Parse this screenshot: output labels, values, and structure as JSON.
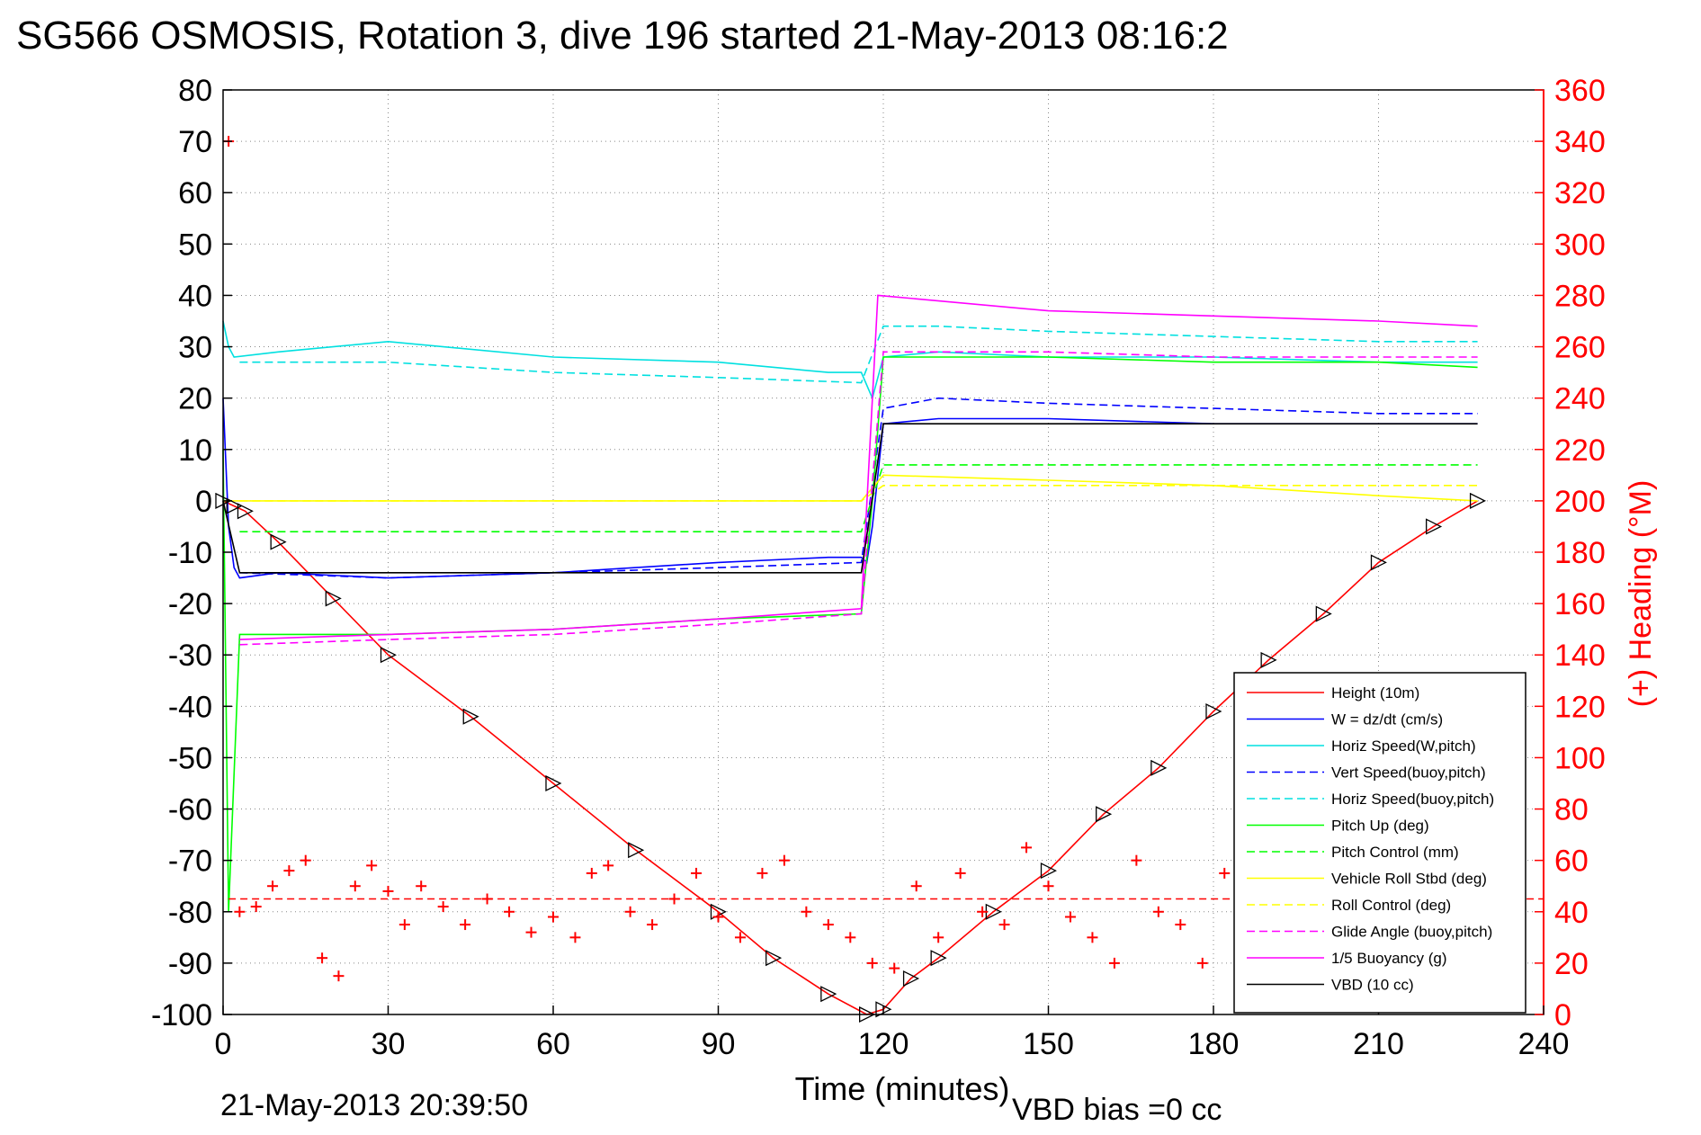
{
  "chart_data": {
    "type": "line",
    "title": "SG566 OSMOSIS, Rotation 3, dive 196 started 21-May-2013 08:16:2",
    "xlabel": "Time (minutes)",
    "ylabel_right": "(+) Heading (°M)",
    "footer_date": "21-May-2013 20:39:50",
    "footer_note": "VBD bias =0 cc",
    "xlim": [
      0,
      240
    ],
    "ylim": [
      -100,
      80
    ],
    "y2lim": [
      0,
      360
    ],
    "xticks": [
      0,
      30,
      60,
      90,
      120,
      150,
      180,
      210,
      240
    ],
    "yticks": [
      80,
      70,
      60,
      50,
      40,
      30,
      20,
      10,
      0,
      -10,
      -20,
      -30,
      -40,
      -50,
      -60,
      -70,
      -80,
      -90,
      -100
    ],
    "y2ticks": [
      360,
      340,
      320,
      300,
      280,
      260,
      240,
      220,
      200,
      180,
      160,
      140,
      120,
      100,
      80,
      60,
      40,
      20,
      0
    ],
    "grid": true,
    "legend_position": "bottom-right",
    "colors": {
      "right_axis": "#ff0000"
    },
    "series": [
      {
        "name": "Height (10m)",
        "color": "#ff0000",
        "style": "solid",
        "x": [
          0,
          2,
          4,
          10,
          20,
          30,
          45,
          60,
          75,
          90,
          100,
          110,
          117,
          120,
          125,
          130,
          140,
          150,
          160,
          170,
          180,
          190,
          200,
          210,
          220,
          228
        ],
        "y": [
          0,
          -1,
          -2,
          -8,
          -19,
          -30,
          -42,
          -55,
          -68,
          -80,
          -89,
          -96,
          -100,
          -99,
          -93,
          -89,
          -80,
          -72,
          -61,
          -52,
          -41,
          -31,
          -22,
          -12,
          -5,
          0
        ]
      },
      {
        "name": "W = dz/dt (cm/s)",
        "color": "#0000ff",
        "style": "solid",
        "x": [
          0,
          1,
          2,
          3,
          10,
          30,
          60,
          90,
          110,
          116,
          117,
          118,
          120,
          130,
          150,
          180,
          210,
          228
        ],
        "y": [
          20,
          -5,
          -13,
          -15,
          -14,
          -15,
          -14,
          -12,
          -11,
          -11,
          -12,
          -5,
          15,
          16,
          16,
          15,
          15,
          15
        ]
      },
      {
        "name": "Horiz Speed(W,pitch)",
        "color": "#00e0e0",
        "style": "solid",
        "x": [
          0,
          1,
          2,
          10,
          30,
          60,
          90,
          110,
          116,
          118,
          120,
          130,
          150,
          180,
          210,
          228
        ],
        "y": [
          35,
          30,
          28,
          29,
          31,
          28,
          27,
          25,
          25,
          20,
          28,
          29,
          28,
          28,
          27,
          27
        ]
      },
      {
        "name": "Vert Speed(buoy,pitch)",
        "color": "#0000ff",
        "style": "dashed",
        "x": [
          3,
          30,
          60,
          90,
          116,
          120,
          130,
          150,
          180,
          210,
          228
        ],
        "y": [
          -14,
          -15,
          -14,
          -13,
          -12,
          18,
          20,
          19,
          18,
          17,
          17
        ]
      },
      {
        "name": "Horiz Speed(buoy,pitch)",
        "color": "#00e0e0",
        "style": "dashed",
        "x": [
          3,
          30,
          60,
          90,
          116,
          120,
          130,
          150,
          180,
          210,
          228
        ],
        "y": [
          27,
          27,
          25,
          24,
          23,
          34,
          34,
          33,
          32,
          31,
          31
        ]
      },
      {
        "name": "Pitch Up (deg)",
        "color": "#00ff00",
        "style": "solid",
        "x": [
          0,
          1,
          3,
          30,
          60,
          90,
          116,
          118,
          120,
          130,
          150,
          180,
          210,
          228
        ],
        "y": [
          10,
          -80,
          -26,
          -26,
          -25,
          -23,
          -22,
          0,
          28,
          28,
          28,
          27,
          27,
          26
        ]
      },
      {
        "name": "Pitch Control (mm)",
        "color": "#00ff00",
        "style": "dashed",
        "x": [
          3,
          116,
          120,
          228
        ],
        "y": [
          -6,
          -6,
          7,
          7
        ]
      },
      {
        "name": "Vehicle Roll Stbd (deg)",
        "color": "#ffff00",
        "style": "solid",
        "x": [
          0,
          3,
          116,
          120,
          150,
          180,
          210,
          228
        ],
        "y": [
          0,
          0,
          0,
          5,
          4,
          3,
          1,
          0
        ]
      },
      {
        "name": "Roll Control (deg)",
        "color": "#ffff00",
        "style": "dashed",
        "x": [
          3,
          116,
          120,
          228
        ],
        "y": [
          0,
          0,
          3,
          3
        ]
      },
      {
        "name": "Glide Angle (buoy,pitch)",
        "color": "#ff00ff",
        "style": "dashed",
        "x": [
          3,
          30,
          60,
          90,
          116,
          120,
          150,
          180,
          210,
          228
        ],
        "y": [
          -28,
          -27,
          -26,
          -24,
          -22,
          29,
          29,
          28,
          28,
          28
        ]
      },
      {
        "name": "1/5 Buoyancy (g)",
        "color": "#ff00ff",
        "style": "solid",
        "x": [
          3,
          30,
          60,
          90,
          116,
          119,
          150,
          180,
          210,
          228
        ],
        "y": [
          -27,
          -26,
          -25,
          -23,
          -21,
          40,
          37,
          36,
          35,
          34
        ]
      },
      {
        "name": "VBD (10 cc)",
        "color": "#000000",
        "style": "solid",
        "x": [
          0,
          3,
          116,
          120,
          228
        ],
        "y": [
          0,
          -14,
          -14,
          15,
          15
        ]
      }
    ],
    "heading_points": {
      "color": "#ff0000",
      "axis": "right",
      "x": [
        1,
        3,
        6,
        9,
        12,
        15,
        18,
        21,
        24,
        27,
        30,
        33,
        36,
        40,
        44,
        48,
        52,
        56,
        60,
        64,
        67,
        70,
        74,
        78,
        82,
        86,
        90,
        94,
        98,
        102,
        106,
        110,
        114,
        118,
        122,
        126,
        130,
        134,
        138,
        142,
        146,
        150,
        154,
        158,
        162,
        166,
        170,
        174,
        178,
        182,
        186
      ],
      "y": [
        340,
        40,
        42,
        50,
        56,
        60,
        22,
        15,
        50,
        58,
        48,
        35,
        50,
        42,
        35,
        45,
        40,
        32,
        38,
        30,
        55,
        58,
        40,
        35,
        45,
        55,
        38,
        30,
        55,
        60,
        40,
        35,
        30,
        20,
        18,
        50,
        30,
        55,
        40,
        35,
        65,
        50,
        38,
        30,
        20,
        60,
        40,
        35,
        20,
        55,
        10
      ]
    },
    "heading_mean": {
      "color": "#ff0000",
      "axis": "right",
      "value": 45
    }
  }
}
